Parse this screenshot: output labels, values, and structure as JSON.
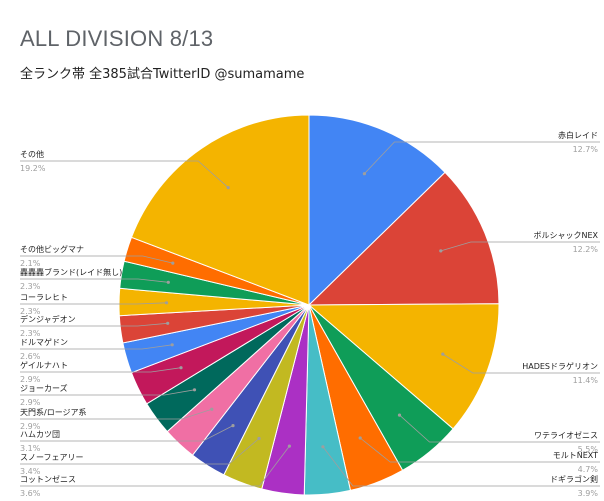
{
  "chart_data": {
    "type": "pie",
    "title": "ALL DIVISION 8/13",
    "subtitle": "全ランク帯 全385試合TwitterID @sumamame",
    "slices": [
      {
        "label": "赤白レイド",
        "pct": "12.7%",
        "value": 12.7,
        "color": "#4285f4"
      },
      {
        "label": "ボルシャックNEX",
        "pct": "12.2%",
        "value": 12.2,
        "color": "#db4437"
      },
      {
        "label": "HADESドラゲリオン",
        "pct": "11.4%",
        "value": 11.4,
        "color": "#f4b400"
      },
      {
        "label": "ワテライオゼニス",
        "pct": "5.5%",
        "value": 5.5,
        "color": "#0f9d58"
      },
      {
        "label": "モルトNEXT",
        "pct": "4.7%",
        "value": 4.7,
        "color": "#ff6d00"
      },
      {
        "label": "ドギラゴン剣",
        "pct": "3.9%",
        "value": 3.9,
        "color": "#46bdc6"
      },
      {
        "label": "コットンゼニス",
        "pct": "3.6%",
        "value": 3.6,
        "color": "#ab30c4"
      },
      {
        "label": "スノーフェアリー",
        "pct": "3.4%",
        "value": 3.4,
        "color": "#c2b921"
      },
      {
        "label": "ハムカツ団",
        "pct": "3.1%",
        "value": 3.1,
        "color": "#3f51b5"
      },
      {
        "label": "天門系/ロージア系",
        "pct": "2.9%",
        "value": 2.9,
        "color": "#f06fa4"
      },
      {
        "label": "ジョーカーズ",
        "pct": "2.9%",
        "value": 2.9,
        "color": "#00695c"
      },
      {
        "label": "ゲイルナハト",
        "pct": "2.9%",
        "value": 2.9,
        "color": "#c2185b"
      },
      {
        "label": "ドルマゲドン",
        "pct": "2.6%",
        "value": 2.6,
        "color": "#4285f4"
      },
      {
        "label": "デンジャデオン",
        "pct": "2.3%",
        "value": 2.3,
        "color": "#db4437"
      },
      {
        "label": "コーラレヒト",
        "pct": "2.3%",
        "value": 2.3,
        "color": "#f4b400"
      },
      {
        "label": "轟轟轟ブランド(レイド無し)",
        "pct": "2.3%",
        "value": 2.3,
        "color": "#0f9d58"
      },
      {
        "label": "その他ビッグマナ",
        "pct": "2.1%",
        "value": 2.1,
        "color": "#ff6d00"
      },
      {
        "label": "その他",
        "pct": "19.2%",
        "value": 19.2,
        "color": "#f4b400"
      }
    ]
  }
}
